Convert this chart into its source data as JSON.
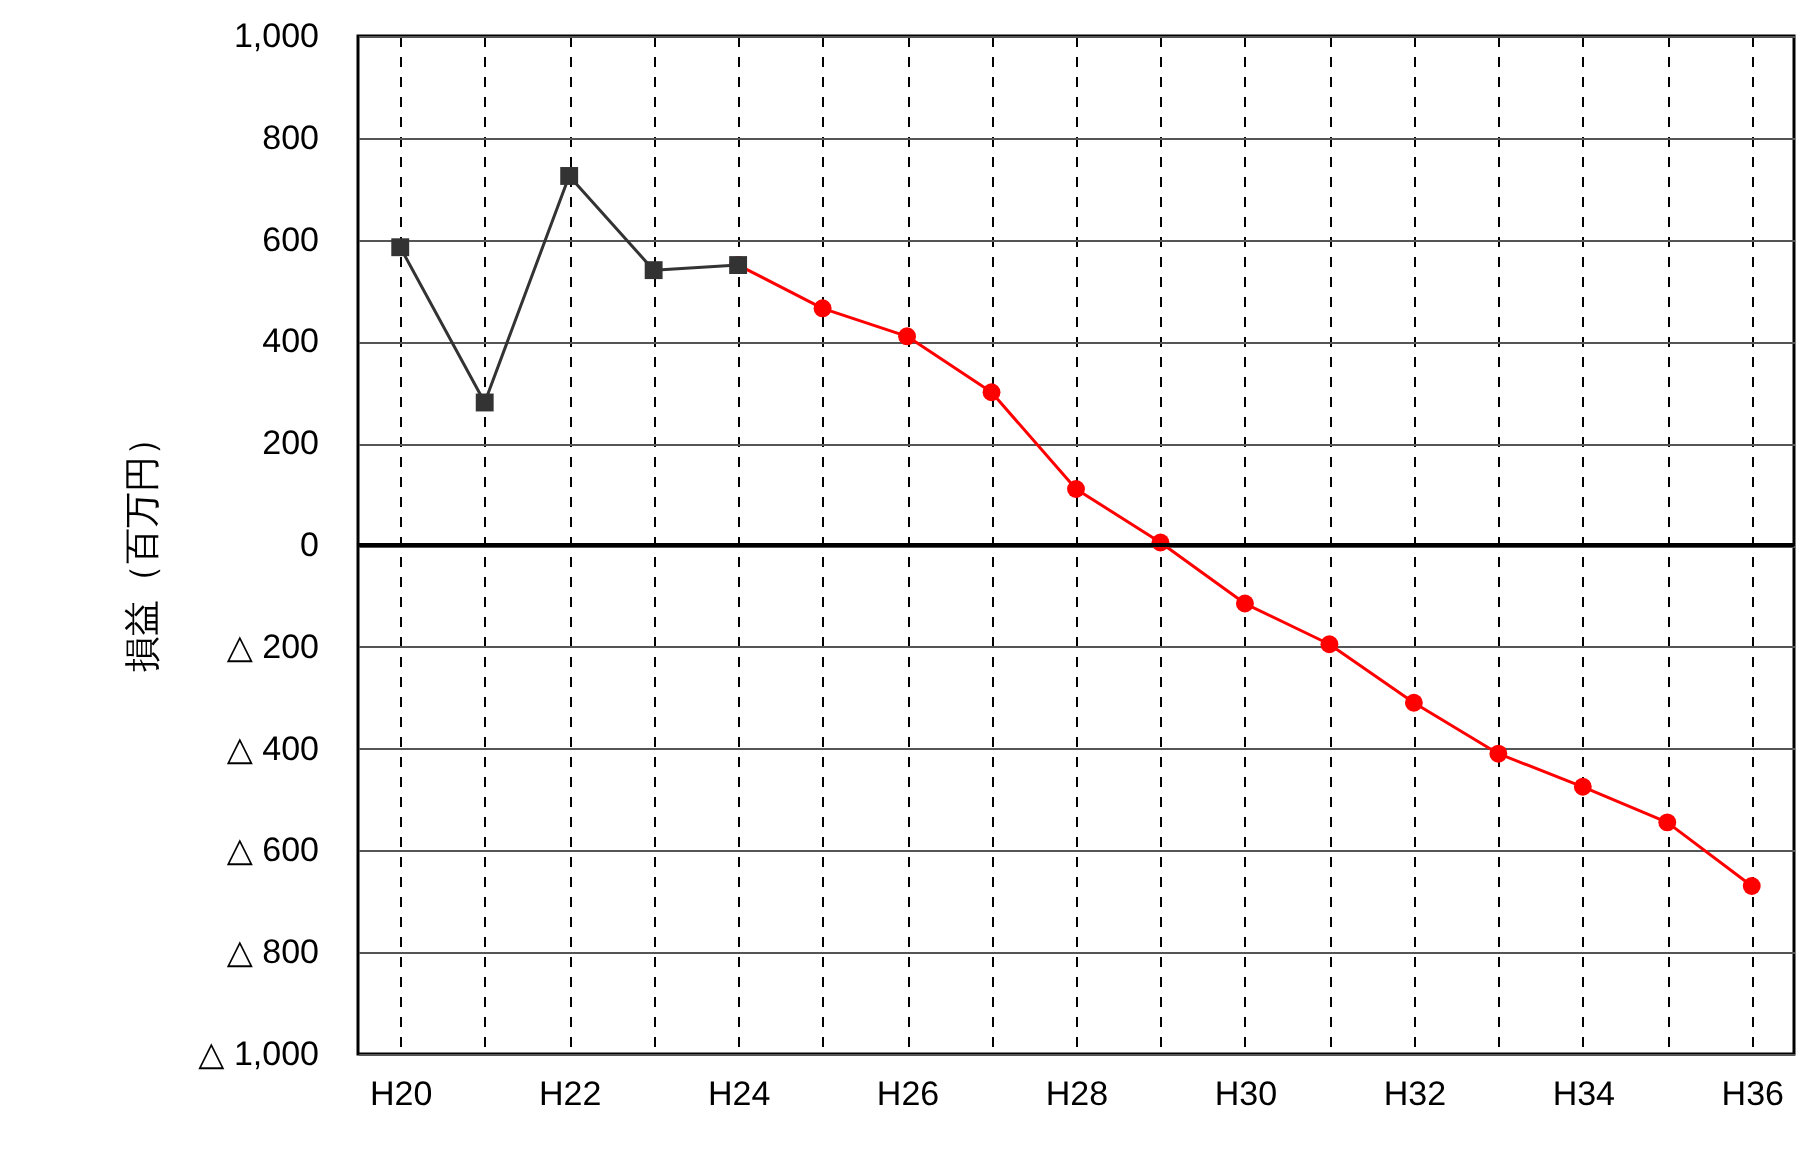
{
  "chart_data": {
    "type": "line",
    "ylabel": "損益（百万円）",
    "categories": [
      "H20",
      null,
      "H22",
      null,
      "H24",
      null,
      "H26",
      null,
      "H28",
      null,
      "H30",
      null,
      "H32",
      null,
      "H34",
      null,
      "H36"
    ],
    "series": [
      {
        "color": "#333333",
        "marker": "square",
        "values": [
          585,
          280,
          725,
          540,
          550,
          null,
          null,
          null,
          null,
          null,
          null,
          null,
          null,
          null,
          null,
          null,
          null
        ]
      },
      {
        "color": "#ff0000",
        "marker": "circle",
        "values": [
          null,
          null,
          null,
          null,
          550,
          465,
          410,
          300,
          110,
          5,
          -115,
          -195,
          -310,
          -410,
          -475,
          -545,
          -670
        ]
      }
    ],
    "ylim": [
      -1000,
      1000
    ],
    "yticks": [
      {
        "value": -1000,
        "label": "△ 1,000"
      },
      {
        "value": -800,
        "label": "△ 800"
      },
      {
        "value": -600,
        "label": "△ 600"
      },
      {
        "value": -400,
        "label": "△ 400"
      },
      {
        "value": -200,
        "label": "△ 200"
      },
      0,
      200,
      400,
      600,
      800,
      {
        "value": 1000,
        "label": "1,000"
      }
    ],
    "ref_lines": [
      {
        "axis": "y",
        "value": 0,
        "color": "#000000"
      }
    ],
    "grid": true
  }
}
